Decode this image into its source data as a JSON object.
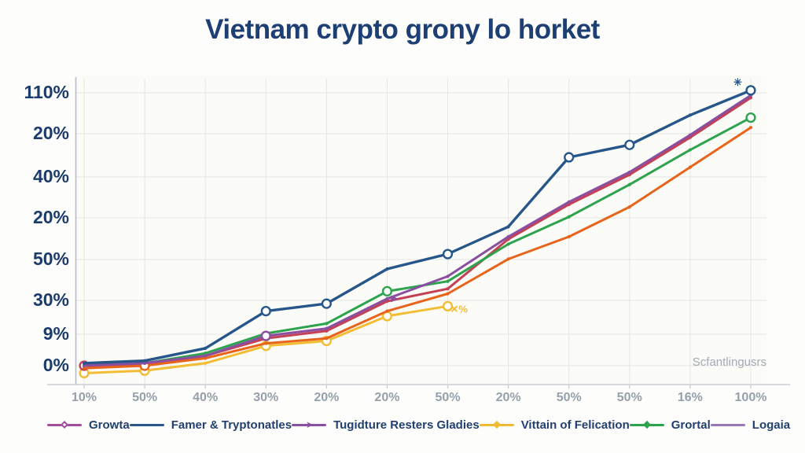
{
  "title": {
    "text": "Vietnam crypto grony lo horket",
    "color": "#1d3f73"
  },
  "watermark": {
    "text": "Scfantlingusrs"
  },
  "colors": {
    "background": "#fdfdfc",
    "plot_background": "#fbfbf8",
    "grid": "#e6e6e2",
    "axis": "#b6bcc6",
    "bottom_axis": "#c9cdd3",
    "y_label": "#1c3c6c",
    "x_label": "#96a0ac",
    "title": "#1d3f73",
    "legend_text": "#21406f",
    "watermark_text": "#a2aab4"
  },
  "chart_data": {
    "type": "line",
    "title": "Vietnam crypto grony lo horket",
    "xlabel": "",
    "ylabel": "",
    "grid": true,
    "legend_position": "bottom",
    "x_tick_labels": [
      "10%",
      "50%",
      "40%",
      "30%",
      "20%",
      "20%",
      "50%",
      "20%",
      "50%",
      "50%",
      "16%",
      "100%"
    ],
    "y_tick_labels": [
      "110%",
      "20%",
      "40%",
      "20%",
      "50%",
      "30%",
      "9%",
      "0%"
    ],
    "ylim": [
      -8,
      118
    ],
    "value_scale_note": "0 = bottom gridline (0%), 110 = top gridline (110%)",
    "series": [
      {
        "id": "vittain",
        "name": "Vittain of Felication",
        "line_color": "#f2bd35",
        "values": [
          -3,
          -2,
          1,
          8,
          10,
          20,
          24,
          null,
          null,
          null,
          null,
          null
        ],
        "ring_markers": [
          0,
          1,
          3,
          4,
          5,
          6
        ],
        "end_annotation": "✕%"
      },
      {
        "id": "growta",
        "name": "Growta",
        "line_color": "#c44055",
        "values": [
          0,
          0,
          4,
          11,
          14,
          26,
          31,
          51,
          65,
          77,
          92,
          108
        ],
        "ring_markers": [
          0
        ],
        "end_annotation": ""
      },
      {
        "id": "logaia",
        "name": "Logaia",
        "line_color": "#e8641b",
        "values": [
          -1,
          0,
          3,
          9,
          11,
          22,
          29,
          43,
          52,
          64,
          80,
          96
        ],
        "ring_markers": [
          1
        ],
        "end_annotation": ""
      },
      {
        "id": "grortal",
        "name": "Grortal",
        "line_color": "#2ea34d",
        "values": [
          1,
          1,
          5,
          13,
          17,
          30,
          34,
          49,
          60,
          73,
          87,
          100
        ],
        "ring_markers": [
          5,
          11
        ],
        "end_annotation": ""
      },
      {
        "id": "tugidture",
        "name": "Tugidture Resters Gladies",
        "line_color": "#8a4fa0",
        "values": [
          0,
          1,
          4,
          12,
          15,
          27,
          36,
          52,
          66,
          78,
          93,
          109
        ],
        "ring_markers": [
          3
        ],
        "arrow_marker_index": 5,
        "end_annotation": ""
      },
      {
        "id": "famer",
        "name": "Famer & Tryptonatles",
        "line_color": "#27568b",
        "values": [
          1,
          2,
          7,
          22,
          25,
          39,
          45,
          56,
          84,
          89,
          101,
          111
        ],
        "ring_markers": [
          3,
          4,
          6,
          8,
          9,
          11
        ],
        "end_annotation": "✳"
      }
    ],
    "legend": [
      {
        "label": "Growta",
        "color": "#a34d9e",
        "marker": "open-diamond"
      },
      {
        "label": "Famer & Tryptonatles",
        "color": "#2a5788",
        "marker": "none"
      },
      {
        "label": "Tugidture Resters Gladies",
        "color": "#8a4fa0",
        "marker": "arrow"
      },
      {
        "label": "Vittain of Felication",
        "color": "#f0bb33",
        "marker": "diamond"
      },
      {
        "label": "Grortal",
        "color": "#2ea34d",
        "marker": "diamond"
      },
      {
        "label": "Logaia",
        "color": "#9678b6",
        "marker": "none"
      }
    ]
  }
}
